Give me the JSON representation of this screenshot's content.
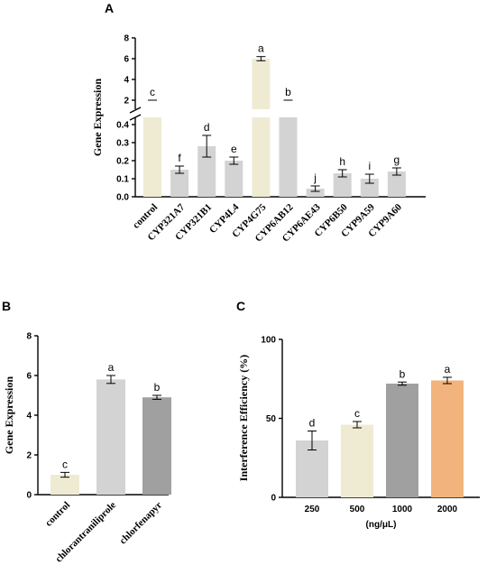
{
  "colors": {
    "cream": "#EFEBD3",
    "light_gray": "#D3D3D3",
    "mid_gray": "#BEBEBE",
    "dark_gray": "#A0A0A0",
    "orange": "#F2B47C"
  },
  "chart_data": [
    {
      "panel": "A",
      "type": "bar",
      "ylabel": "Gene Expression",
      "axis_break": true,
      "lower_range": [
        0,
        0.4
      ],
      "upper_range": [
        2,
        8
      ],
      "lower_ticks": [
        "0.0",
        "0.1",
        "0.2",
        "0.3",
        "0.4"
      ],
      "upper_ticks": [
        "2",
        "4",
        "6",
        "8"
      ],
      "categories": [
        "control",
        "CYP321A7",
        "CYP321B1",
        "CYP4L4",
        "CYP4G75",
        "CYP6AB12",
        "CYP6AE43",
        "CYP6B50",
        "CYP9A59",
        "CYP9A60"
      ],
      "values": [
        1.0,
        0.15,
        0.28,
        0.2,
        6.0,
        1.6,
        0.045,
        0.13,
        0.1,
        0.14
      ],
      "errors": [
        0.1,
        0.02,
        0.06,
        0.02,
        0.2,
        0.35,
        0.015,
        0.02,
        0.025,
        0.02
      ],
      "letters": [
        "c",
        "f",
        "d",
        "e",
        "a",
        "b",
        "j",
        "h",
        "i",
        "g"
      ],
      "colors": [
        "cream",
        "light_gray",
        "light_gray",
        "light_gray",
        "cream",
        "light_gray",
        "light_gray",
        "light_gray",
        "light_gray",
        "light_gray"
      ]
    },
    {
      "panel": "B",
      "type": "bar",
      "ylabel": "Gene Expression",
      "ylim": [
        0,
        8
      ],
      "ticks": [
        "0",
        "2",
        "4",
        "6",
        "8"
      ],
      "categories": [
        "control",
        "chlorantraniliprole",
        "chlorfenapyr"
      ],
      "values": [
        1.0,
        5.8,
        4.9
      ],
      "errors": [
        0.12,
        0.2,
        0.1
      ],
      "letters": [
        "c",
        "a",
        "b"
      ],
      "colors": [
        "cream",
        "light_gray",
        "dark_gray"
      ]
    },
    {
      "panel": "C",
      "type": "bar",
      "ylabel": "Interference Efficiency (%)",
      "xlabel": "(ng/μL)",
      "ylim": [
        0,
        100
      ],
      "ticks": [
        "0",
        "50",
        "100"
      ],
      "categories": [
        "250",
        "500",
        "1000",
        "2000"
      ],
      "values": [
        36,
        46,
        72,
        74
      ],
      "errors": [
        6,
        2,
        1,
        2
      ],
      "letters": [
        "d",
        "c",
        "b",
        "a"
      ],
      "colors": [
        "light_gray",
        "cream",
        "dark_gray",
        "orange"
      ]
    }
  ]
}
